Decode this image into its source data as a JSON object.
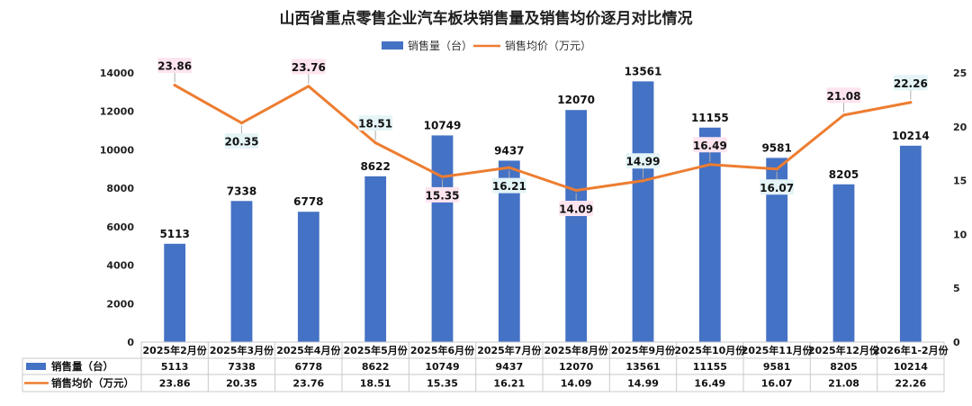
{
  "chart_data": {
    "type": "bar",
    "title": "山西省重点零售企业汽车板块销售量及销售均价逐月对比情况",
    "categories": [
      "2025年2月份",
      "2025年3月份",
      "2025年4月份",
      "2025年5月份",
      "2025年6月份",
      "2025年7月份",
      "2025年8月份",
      "2025年9月份",
      "2025年10月份",
      "2025年11月份",
      "2025年12月份",
      "2026年1-2月份"
    ],
    "series": [
      {
        "name": "销售量（台）",
        "type": "bar",
        "axis": "left",
        "color": "#4472C4",
        "values": [
          5113,
          7338,
          6778,
          8622,
          10749,
          9437,
          12070,
          13561,
          11155,
          9581,
          8205,
          10214
        ]
      },
      {
        "name": "销售均价（万元）",
        "type": "line",
        "axis": "right",
        "color": "#ED7D31",
        "values": [
          23.86,
          20.35,
          23.76,
          18.51,
          15.35,
          16.21,
          14.09,
          14.99,
          16.49,
          16.07,
          21.08,
          22.26
        ]
      }
    ],
    "y_left": {
      "min": 0,
      "max": 14000,
      "ticks": [
        0,
        2000,
        4000,
        6000,
        8000,
        10000,
        12000,
        14000
      ]
    },
    "y_right": {
      "min": 0,
      "max": 25,
      "ticks": [
        0,
        5,
        10,
        15,
        20,
        25
      ]
    },
    "legend_position": "top-center",
    "data_table": true,
    "grid": false
  }
}
